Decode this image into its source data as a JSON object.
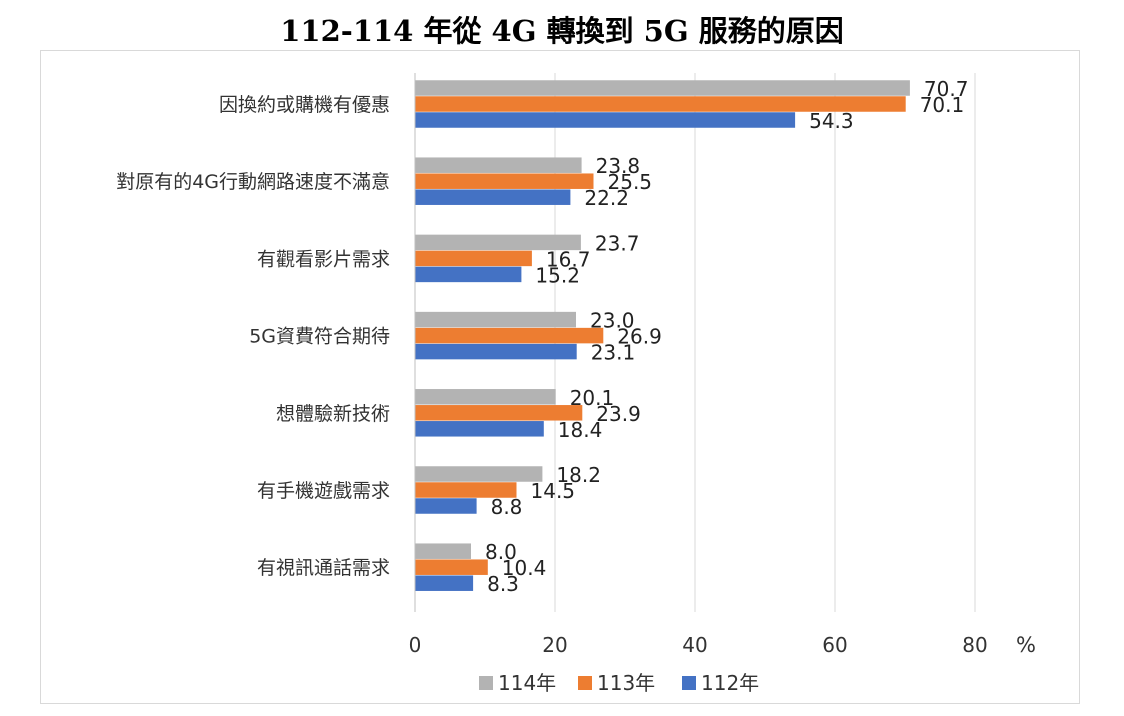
{
  "chart_data": {
    "type": "bar",
    "orientation": "horizontal",
    "title": "112-114 年從 4G 轉換到 5G 服務的原因",
    "unit": "%",
    "categories": [
      "因換約或購機有優惠",
      "對原有的4G行動網路速度不滿意",
      "有觀看影片需求",
      "5G資費符合期待",
      "想體驗新技術",
      "有手機遊戲需求",
      "有視訊通話需求"
    ],
    "series": [
      {
        "name": "114年",
        "color": "#b3b3b3",
        "values": [
          70.7,
          23.8,
          23.7,
          23.0,
          20.1,
          18.2,
          8.0
        ]
      },
      {
        "name": "113年",
        "color": "#ed7d31",
        "values": [
          70.1,
          25.5,
          16.7,
          26.9,
          23.9,
          14.5,
          10.4
        ]
      },
      {
        "name": "112年",
        "color": "#4472c4",
        "values": [
          54.3,
          22.2,
          15.2,
          23.1,
          18.4,
          8.8,
          8.3
        ]
      }
    ],
    "value_labels": [
      [
        "70.7",
        "23.8",
        "23.7",
        "23.0",
        "20.1",
        "18.2",
        "8.0"
      ],
      [
        "70.1",
        "25.5",
        "16.7",
        "26.9",
        "23.9",
        "14.5",
        "10.4"
      ],
      [
        "54.3",
        "22.2",
        "15.2",
        "23.1",
        "18.4",
        "8.8",
        "8.3"
      ]
    ],
    "xlim": [
      0,
      80
    ],
    "xticks": [
      0,
      20,
      40,
      60,
      80
    ],
    "grid": true,
    "legend_position": "bottom"
  }
}
